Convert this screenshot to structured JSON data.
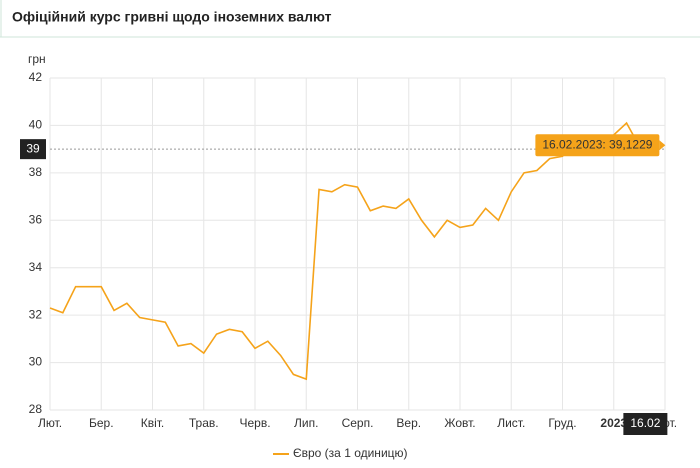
{
  "chart_data": {
    "type": "line",
    "title": "Офіційний курс гривні щодо іноземних валют",
    "y_unit": "грн",
    "ylim": [
      28,
      42
    ],
    "yticks": [
      28,
      30,
      32,
      34,
      36,
      38,
      40,
      42
    ],
    "xlim": [
      0,
      48
    ],
    "xticks": [
      {
        "value": 0,
        "label": "Лют."
      },
      {
        "value": 4,
        "label": "Бер."
      },
      {
        "value": 8,
        "label": "Квіт."
      },
      {
        "value": 12,
        "label": "Трав."
      },
      {
        "value": 16,
        "label": "Черв."
      },
      {
        "value": 20,
        "label": "Лип."
      },
      {
        "value": 24,
        "label": "Серп."
      },
      {
        "value": 28,
        "label": "Вер."
      },
      {
        "value": 32,
        "label": "Жовт."
      },
      {
        "value": 36,
        "label": "Лист."
      },
      {
        "value": 40,
        "label": "Груд."
      },
      {
        "value": 44,
        "label": "2023"
      },
      {
        "value": 48,
        "label": "Лют."
      }
    ],
    "grid": true,
    "series": [
      {
        "name": "Євро (за 1 одиницю)",
        "color": "#f5a31a",
        "values": [
          32.3,
          32.1,
          33.2,
          33.2,
          33.2,
          32.2,
          32.5,
          31.9,
          31.8,
          31.7,
          30.7,
          30.8,
          30.4,
          31.2,
          31.4,
          31.3,
          30.6,
          30.9,
          30.3,
          29.5,
          29.3,
          37.3,
          37.2,
          37.5,
          37.4,
          36.4,
          36.6,
          36.5,
          36.9,
          36.0,
          35.3,
          36.0,
          35.7,
          35.8,
          36.5,
          36.0,
          37.2,
          38.0,
          38.1,
          38.6,
          38.7,
          39.3,
          39.5,
          38.8,
          39.6,
          40.1,
          39.1229
        ]
      }
    ],
    "crosshair_y": 39,
    "crosshair_x_label": "16.02",
    "tooltip": "16.02.2023: 39,1229"
  }
}
